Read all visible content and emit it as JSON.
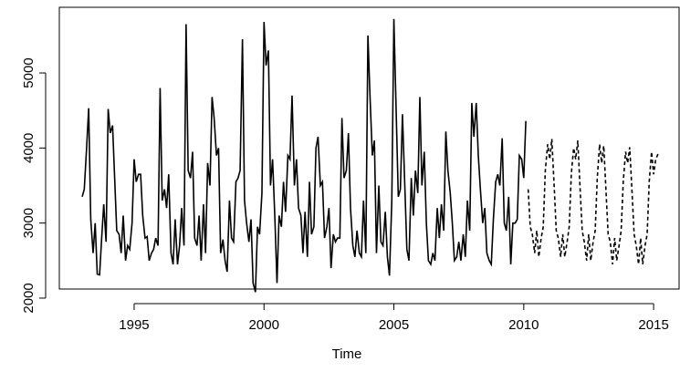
{
  "chart_data": {
    "type": "line",
    "x_label": "Time",
    "xlim": [
      1992.12,
      2015.98
    ],
    "ylim": [
      2121,
      5875
    ],
    "xticks": [
      1995,
      2000,
      2005,
      2010,
      2015
    ],
    "yticks": [
      2000,
      3000,
      4000,
      5000
    ],
    "series": [
      {
        "color": "#000000",
        "linestyle": "solid",
        "x": [
          1993,
          1993.08,
          1993.17,
          1993.25,
          1993.33,
          1993.42,
          1993.5,
          1993.58,
          1993.67,
          1993.75,
          1993.83,
          1993.92,
          1994,
          1994.08,
          1994.17,
          1994.25,
          1994.33,
          1994.42,
          1994.5,
          1994.58,
          1994.67,
          1994.75,
          1994.83,
          1994.92,
          1995,
          1995.08,
          1995.17,
          1995.25,
          1995.33,
          1995.42,
          1995.5,
          1995.58,
          1995.67,
          1995.75,
          1995.83,
          1995.92,
          1996,
          1996.08,
          1996.17,
          1996.25,
          1996.33,
          1996.42,
          1996.5,
          1996.58,
          1996.67,
          1996.75,
          1996.83,
          1996.92,
          1997,
          1997.08,
          1997.17,
          1997.25,
          1997.33,
          1997.42,
          1997.5,
          1997.58,
          1997.67,
          1997.75,
          1997.83,
          1997.92,
          1998,
          1998.08,
          1998.17,
          1998.25,
          1998.33,
          1998.42,
          1998.5,
          1998.58,
          1998.67,
          1998.75,
          1998.83,
          1998.92,
          1999,
          1999.08,
          1999.17,
          1999.25,
          1999.33,
          1999.42,
          1999.5,
          1999.58,
          1999.67,
          1999.75,
          1999.83,
          1999.92,
          2000,
          2000.08,
          2000.17,
          2000.25,
          2000.33,
          2000.42,
          2000.5,
          2000.58,
          2000.67,
          2000.75,
          2000.83,
          2000.92,
          2001,
          2001.08,
          2001.17,
          2001.25,
          2001.33,
          2001.42,
          2001.5,
          2001.58,
          2001.67,
          2001.75,
          2001.83,
          2001.92,
          2002,
          2002.08,
          2002.17,
          2002.25,
          2002.33,
          2002.42,
          2002.5,
          2002.58,
          2002.67,
          2002.75,
          2002.83,
          2002.92,
          2003,
          2003.08,
          2003.17,
          2003.25,
          2003.33,
          2003.42,
          2003.5,
          2003.58,
          2003.67,
          2003.75,
          2003.83,
          2003.92,
          2004,
          2004.08,
          2004.17,
          2004.25,
          2004.33,
          2004.42,
          2004.5,
          2004.58,
          2004.67,
          2004.75,
          2004.83,
          2004.92,
          2005,
          2005.08,
          2005.17,
          2005.25,
          2005.33,
          2005.42,
          2005.5,
          2005.58,
          2005.67,
          2005.75,
          2005.83,
          2005.92,
          2006,
          2006.08,
          2006.17,
          2006.25,
          2006.33,
          2006.42,
          2006.5,
          2006.58,
          2006.67,
          2006.75,
          2006.83,
          2006.92,
          2007,
          2007.08,
          2007.17,
          2007.25,
          2007.33,
          2007.42,
          2007.5,
          2007.58,
          2007.67,
          2007.75,
          2007.83,
          2007.92,
          2008,
          2008.08,
          2008.17,
          2008.25,
          2008.33,
          2008.42,
          2008.5,
          2008.58,
          2008.67,
          2008.75,
          2008.83,
          2008.92,
          2009,
          2009.08,
          2009.17,
          2009.25,
          2009.33,
          2009.42,
          2009.5,
          2009.58,
          2009.67,
          2009.75,
          2009.83,
          2009.92,
          2010,
          2010.08
        ],
        "values": [
          3350,
          3450,
          4000,
          4530,
          3050,
          2600,
          3000,
          2320,
          2310,
          2800,
          3250,
          2750,
          4520,
          4200,
          4300,
          3600,
          2900,
          2850,
          2600,
          3100,
          2500,
          2700,
          2650,
          3000,
          3850,
          3550,
          3650,
          3650,
          3100,
          2800,
          2820,
          2500,
          2600,
          2650,
          2800,
          2700,
          4800,
          3300,
          3450,
          3200,
          3650,
          2600,
          2450,
          3050,
          2450,
          2700,
          3200,
          2700,
          5650,
          3700,
          3600,
          3950,
          2800,
          2700,
          3100,
          2500,
          3250,
          2600,
          3800,
          3500,
          4680,
          4400,
          3900,
          4000,
          2600,
          2780,
          2500,
          2350,
          3300,
          2800,
          2750,
          3550,
          3600,
          3700,
          5450,
          3300,
          3000,
          2750,
          3050,
          2200,
          2080,
          2950,
          2850,
          3400,
          5680,
          5100,
          5300,
          3500,
          3850,
          3050,
          2200,
          3100,
          2950,
          3550,
          3150,
          3900,
          3850,
          4700,
          3500,
          3850,
          3200,
          3100,
          2600,
          3150,
          2550,
          3550,
          2850,
          2950,
          4000,
          4150,
          3500,
          3550,
          2800,
          2950,
          3200,
          2400,
          2850,
          2750,
          2800,
          2800,
          4400,
          3600,
          3700,
          4200,
          3200,
          2700,
          2550,
          2900,
          2600,
          2550,
          3300,
          2600,
          5500,
          4700,
          3900,
          4100,
          2600,
          3500,
          2750,
          2700,
          3150,
          2550,
          2300,
          3300,
          5720,
          4600,
          3350,
          3450,
          4450,
          3500,
          2650,
          2500,
          3600,
          3100,
          3700,
          3400,
          4680,
          3500,
          3950,
          3000,
          2500,
          2450,
          2600,
          2500,
          3200,
          2800,
          3250,
          2900,
          4220,
          3700,
          3400,
          3000,
          2500,
          2550,
          2750,
          2500,
          2850,
          2550,
          3300,
          2900,
          4600,
          4150,
          4600,
          3900,
          3450,
          3000,
          3200,
          2600,
          2500,
          2450,
          3050,
          3550,
          3650,
          3500,
          4130,
          3000,
          2900,
          3350,
          2450,
          3000,
          3000,
          3050,
          3900,
          3850,
          3600,
          4360
        ]
      },
      {
        "color": "#000000",
        "linestyle": "dashed",
        "x": [
          2010.17,
          2010.25,
          2010.33,
          2010.42,
          2010.5,
          2010.58,
          2010.67,
          2010.75,
          2010.83,
          2010.92,
          2011,
          2011.08,
          2011.17,
          2011.25,
          2011.33,
          2011.42,
          2011.5,
          2011.58,
          2011.67,
          2011.75,
          2011.83,
          2011.92,
          2012,
          2012.08,
          2012.17,
          2012.25,
          2012.33,
          2012.42,
          2012.5,
          2012.58,
          2012.67,
          2012.75,
          2012.83,
          2012.92,
          2013,
          2013.08,
          2013.17,
          2013.25,
          2013.33,
          2013.42,
          2013.5,
          2013.58,
          2013.67,
          2013.75,
          2013.83,
          2013.92,
          2014,
          2014.08,
          2014.17,
          2014.25,
          2014.33,
          2014.42,
          2014.5,
          2014.58,
          2014.67,
          2014.75,
          2014.83,
          2014.92,
          2015,
          2015.08,
          2015.17
        ],
        "values": [
          3450,
          2950,
          2850,
          2600,
          2900,
          2550,
          2800,
          2950,
          3700,
          4050,
          3850,
          4120,
          3500,
          2900,
          2800,
          2550,
          2850,
          2550,
          2750,
          2950,
          3650,
          4000,
          3850,
          4100,
          3450,
          2900,
          2750,
          2500,
          2850,
          2500,
          2750,
          2900,
          3600,
          4050,
          3800,
          4030,
          3400,
          2850,
          2750,
          2450,
          2800,
          2500,
          2700,
          2900,
          3550,
          3950,
          3800,
          4010,
          3400,
          2850,
          2700,
          2450,
          2800,
          2450,
          2700,
          2850,
          3550,
          3950,
          3650,
          3850,
          3920
        ]
      }
    ]
  }
}
